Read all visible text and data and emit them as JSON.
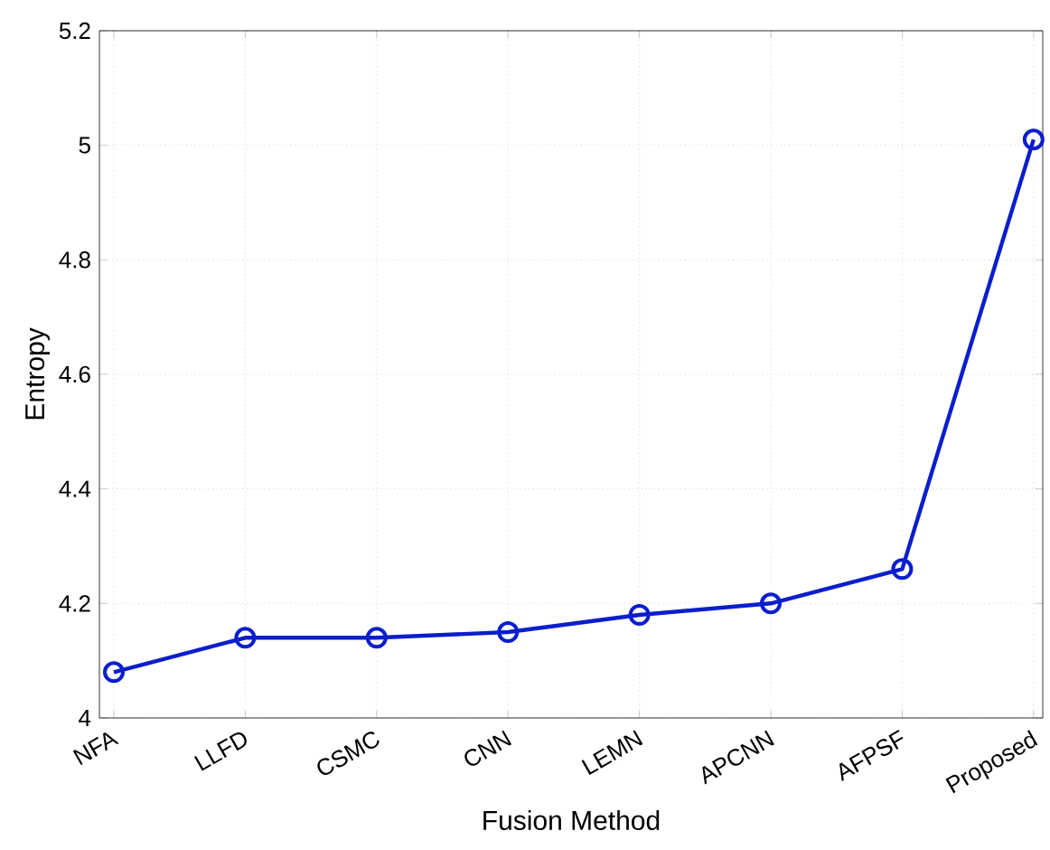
{
  "chart_data": {
    "type": "line",
    "xlabel": "Fusion Method",
    "ylabel": "Entropy",
    "categories": [
      "NFA",
      "LLFD",
      "CSMC",
      "CNN",
      "LEMN",
      "APCNN",
      "AFPSF",
      "Proposed"
    ],
    "series": [
      {
        "color": "#0a1ecc",
        "values": [
          4.08,
          4.14,
          4.14,
          4.15,
          4.18,
          4.2,
          4.26,
          5.01
        ]
      }
    ],
    "ylim": [
      4,
      5.2
    ],
    "yticks": [
      4,
      4.2,
      4.4,
      4.6,
      4.8,
      5,
      5.2
    ],
    "grid": true,
    "marker": "circle",
    "line_style": "solid"
  }
}
